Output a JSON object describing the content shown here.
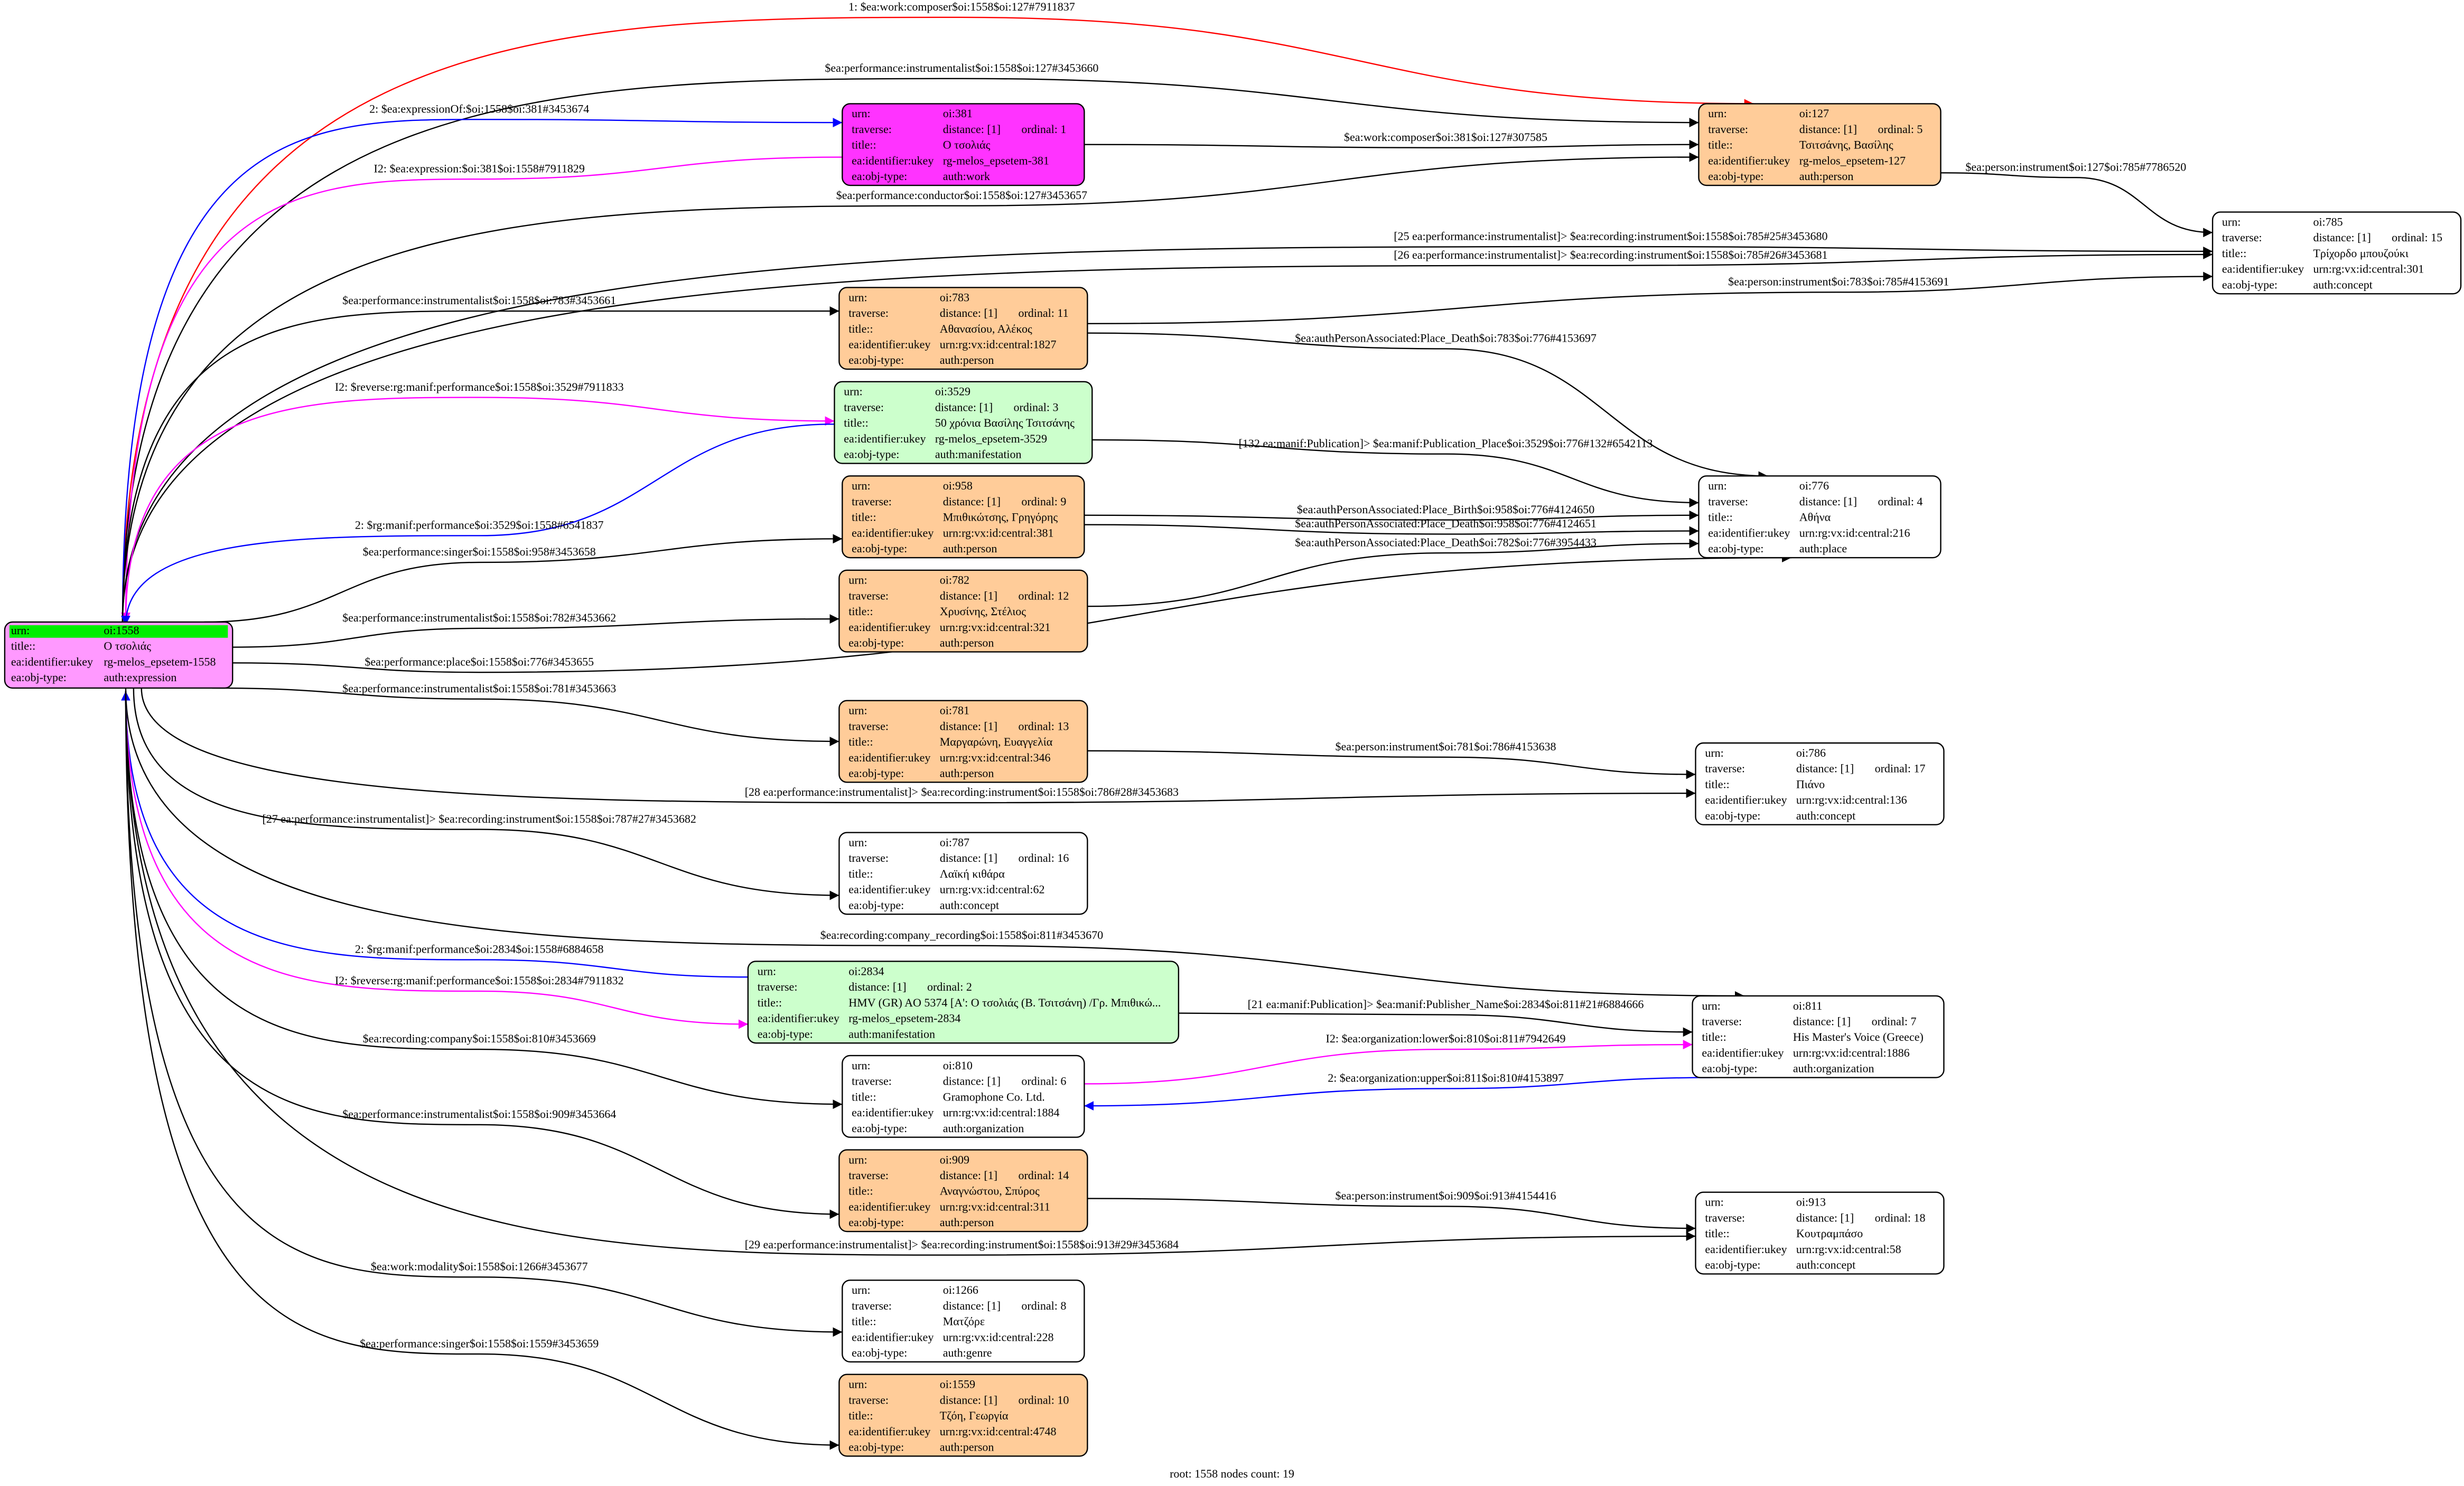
{
  "row_labels": {
    "urn": "urn:",
    "traverse": "traverse:",
    "title": "title::",
    "ukey": "ea:identifier:ukey",
    "objtype": "ea:obj-type:"
  },
  "root": {
    "urn": "oi:1558",
    "title": "Ο τσολιάς",
    "ukey": "rg-melos_epsetem-1558",
    "objtype": "auth:expression",
    "fill": "#ff99ff",
    "header_fill": "#00ee00"
  },
  "nodes": [
    {
      "urn": "oi:381",
      "distance": "distance: [1]",
      "ordinal": "ordinal: 1",
      "title": "Ο τσολιάς",
      "ukey": "rg-melos_epsetem-381",
      "objtype": "auth:work",
      "fill": "#ff33ff"
    },
    {
      "urn": "oi:127",
      "distance": "distance: [1]",
      "ordinal": "ordinal: 5",
      "title": "Τσιτσάνης, Βασίλης",
      "ukey": "rg-melos_epsetem-127",
      "objtype": "auth:person",
      "fill": "#ffcc99"
    },
    {
      "urn": "oi:785",
      "distance": "distance: [1]",
      "ordinal": "ordinal: 15",
      "title": "Τρίχορδο μπουζούκι",
      "ukey": "urn:rg:vx:id:central:301",
      "objtype": "auth:concept",
      "fill": "#ffffff"
    },
    {
      "urn": "oi:783",
      "distance": "distance: [1]",
      "ordinal": "ordinal: 11",
      "title": "Αθανασίου, Αλέκος",
      "ukey": "urn:rg:vx:id:central:1827",
      "objtype": "auth:person",
      "fill": "#ffcc99"
    },
    {
      "urn": "oi:3529",
      "distance": "distance: [1]",
      "ordinal": "ordinal: 3",
      "title": "50 χρόνια Βασίλης Τσιτσάνης",
      "ukey": "rg-melos_epsetem-3529",
      "objtype": "auth:manifestation",
      "fill": "#ccffcc"
    },
    {
      "urn": "oi:958",
      "distance": "distance: [1]",
      "ordinal": "ordinal: 9",
      "title": "Μπιθικώτσης, Γρηγόρης",
      "ukey": "urn:rg:vx:id:central:381",
      "objtype": "auth:person",
      "fill": "#ffcc99"
    },
    {
      "urn": "oi:776",
      "distance": "distance: [1]",
      "ordinal": "ordinal: 4",
      "title": "Αθήνα",
      "ukey": "urn:rg:vx:id:central:216",
      "objtype": "auth:place",
      "fill": "#ffffff"
    },
    {
      "urn": "oi:782",
      "distance": "distance: [1]",
      "ordinal": "ordinal: 12",
      "title": "Χρυσίνης, Στέλιος",
      "ukey": "urn:rg:vx:id:central:321",
      "objtype": "auth:person",
      "fill": "#ffcc99"
    },
    {
      "urn": "oi:781",
      "distance": "distance: [1]",
      "ordinal": "ordinal: 13",
      "title": "Μαργαρώνη, Ευαγγελία",
      "ukey": "urn:rg:vx:id:central:346",
      "objtype": "auth:person",
      "fill": "#ffcc99"
    },
    {
      "urn": "oi:786",
      "distance": "distance: [1]",
      "ordinal": "ordinal: 17",
      "title": "Πιάνο",
      "ukey": "urn:rg:vx:id:central:136",
      "objtype": "auth:concept",
      "fill": "#ffffff"
    },
    {
      "urn": "oi:787",
      "distance": "distance: [1]",
      "ordinal": "ordinal: 16",
      "title": "Λαϊκή κιθάρα",
      "ukey": "urn:rg:vx:id:central:62",
      "objtype": "auth:concept",
      "fill": "#ffffff"
    },
    {
      "urn": "oi:2834",
      "distance": "distance: [1]",
      "ordinal": "ordinal: 2",
      "title": "HMV (GR) AO 5374 [A': Ο τσολιάς (Β. Τσιτσάνη) /Γρ. Μπιθικώ...",
      "ukey": "rg-melos_epsetem-2834",
      "objtype": "auth:manifestation",
      "fill": "#ccffcc"
    },
    {
      "urn": "oi:811",
      "distance": "distance: [1]",
      "ordinal": "ordinal: 7",
      "title": "His Master's Voice (Greece)",
      "ukey": "urn:rg:vx:id:central:1886",
      "objtype": "auth:organization",
      "fill": "#ffffff"
    },
    {
      "urn": "oi:810",
      "distance": "distance: [1]",
      "ordinal": "ordinal: 6",
      "title": "Gramophone Co. Ltd.",
      "ukey": "urn:rg:vx:id:central:1884",
      "objtype": "auth:organization",
      "fill": "#ffffff"
    },
    {
      "urn": "oi:909",
      "distance": "distance: [1]",
      "ordinal": "ordinal: 14",
      "title": "Αναγνώστου, Σπύρος",
      "ukey": "urn:rg:vx:id:central:311",
      "objtype": "auth:person",
      "fill": "#ffcc99"
    },
    {
      "urn": "oi:913",
      "distance": "distance: [1]",
      "ordinal": "ordinal: 18",
      "title": "Κουτραμπάσο",
      "ukey": "urn:rg:vx:id:central:58",
      "objtype": "auth:concept",
      "fill": "#ffffff"
    },
    {
      "urn": "oi:1266",
      "distance": "distance: [1]",
      "ordinal": "ordinal: 8",
      "title": "Ματζόρε",
      "ukey": "urn:rg:vx:id:central:228",
      "objtype": "auth:genre",
      "fill": "#ffffff"
    },
    {
      "urn": "oi:1559",
      "distance": "distance: [1]",
      "ordinal": "ordinal: 10",
      "title": "Τζόη, Γεωργία",
      "ukey": "urn:rg:vx:id:central:4748",
      "objtype": "auth:person",
      "fill": "#ffcc99"
    }
  ],
  "edges": [
    {
      "label": "1: $ea:work:composer$oi:1558$oi:127#7911837",
      "color": "#ff0000"
    },
    {
      "label": "$ea:performance:instrumentalist$oi:1558$oi:127#3453660",
      "color": "#000000"
    },
    {
      "label": "2: $ea:expressionOf:$oi:1558$oi:381#3453674",
      "color": "#0000ff"
    },
    {
      "label": "I2: $ea:expression:$oi:381$oi:1558#7911829",
      "color": "#ff00ff"
    },
    {
      "label": "$ea:work:composer$oi:381$oi:127#307585",
      "color": "#000000"
    },
    {
      "label": "$ea:performance:conductor$oi:1558$oi:127#3453657",
      "color": "#000000"
    },
    {
      "label": "$ea:person:instrument$oi:127$oi:785#7786520",
      "color": "#000000"
    },
    {
      "label": "[25 ea:performance:instrumentalist]> $ea:recording:instrument$oi:1558$oi:785#25#3453680",
      "color": "#000000"
    },
    {
      "label": "[26 ea:performance:instrumentalist]> $ea:recording:instrument$oi:1558$oi:785#26#3453681",
      "color": "#000000"
    },
    {
      "label": "$ea:performance:instrumentalist$oi:1558$oi:783#3453661",
      "color": "#000000"
    },
    {
      "label": "$ea:person:instrument$oi:783$oi:785#4153691",
      "color": "#000000"
    },
    {
      "label": "$ea:authPersonAssociated:Place_Death$oi:783$oi:776#4153697",
      "color": "#000000"
    },
    {
      "label": "I2: $reverse:rg:manif:performance$oi:1558$oi:3529#7911833",
      "color": "#ff00ff"
    },
    {
      "label": "2: $rg:manif:performance$oi:3529$oi:1558#6541837",
      "color": "#0000ff"
    },
    {
      "label": "[132 ea:manif:Publication]> $ea:manif:Publication_Place$oi:3529$oi:776#132#6542113",
      "color": "#000000"
    },
    {
      "label": "$ea:performance:singer$oi:1558$oi:958#3453658",
      "color": "#000000"
    },
    {
      "label": "$ea:authPersonAssociated:Place_Birth$oi:958$oi:776#4124650",
      "color": "#000000"
    },
    {
      "label": "$ea:authPersonAssociated:Place_Death$oi:958$oi:776#4124651",
      "color": "#000000"
    },
    {
      "label": "$ea:authPersonAssociated:Place_Death$oi:782$oi:776#3954433",
      "color": "#000000"
    },
    {
      "label": "$ea:performance:instrumentalist$oi:1558$oi:782#3453662",
      "color": "#000000"
    },
    {
      "label": "$ea:performance:place$oi:1558$oi:776#3453655",
      "color": "#000000"
    },
    {
      "label": "$ea:performance:instrumentalist$oi:1558$oi:781#3453663",
      "color": "#000000"
    },
    {
      "label": "$ea:person:instrument$oi:781$oi:786#4153638",
      "color": "#000000"
    },
    {
      "label": "[28 ea:performance:instrumentalist]> $ea:recording:instrument$oi:1558$oi:786#28#3453683",
      "color": "#000000"
    },
    {
      "label": "[27 ea:performance:instrumentalist]> $ea:recording:instrument$oi:1558$oi:787#27#3453682",
      "color": "#000000"
    },
    {
      "label": "$ea:recording:company_recording$oi:1558$oi:811#3453670",
      "color": "#000000"
    },
    {
      "label": "2: $rg:manif:performance$oi:2834$oi:1558#6884658",
      "color": "#0000ff"
    },
    {
      "label": "I2: $reverse:rg:manif:performance$oi:1558$oi:2834#7911832",
      "color": "#ff00ff"
    },
    {
      "label": "[21 ea:manif:Publication]> $ea:manif:Publisher_Name$oi:2834$oi:811#21#6884666",
      "color": "#000000"
    },
    {
      "label": "I2: $ea:organization:lower$oi:810$oi:811#7942649",
      "color": "#ff00ff"
    },
    {
      "label": "2: $ea:organization:upper$oi:811$oi:810#4153897",
      "color": "#0000ff"
    },
    {
      "label": "$ea:recording:company$oi:1558$oi:810#3453669",
      "color": "#000000"
    },
    {
      "label": "$ea:performance:instrumentalist$oi:1558$oi:909#3453664",
      "color": "#000000"
    },
    {
      "label": "$ea:person:instrument$oi:909$oi:913#4154416",
      "color": "#000000"
    },
    {
      "label": "[29 ea:performance:instrumentalist]> $ea:recording:instrument$oi:1558$oi:913#29#3453684",
      "color": "#000000"
    },
    {
      "label": "$ea:work:modality$oi:1558$oi:1266#3453677",
      "color": "#000000"
    },
    {
      "label": "$ea:performance:singer$oi:1558$oi:1559#3453659",
      "color": "#000000"
    }
  ],
  "footer": "root: 1558 nodes count: 19"
}
